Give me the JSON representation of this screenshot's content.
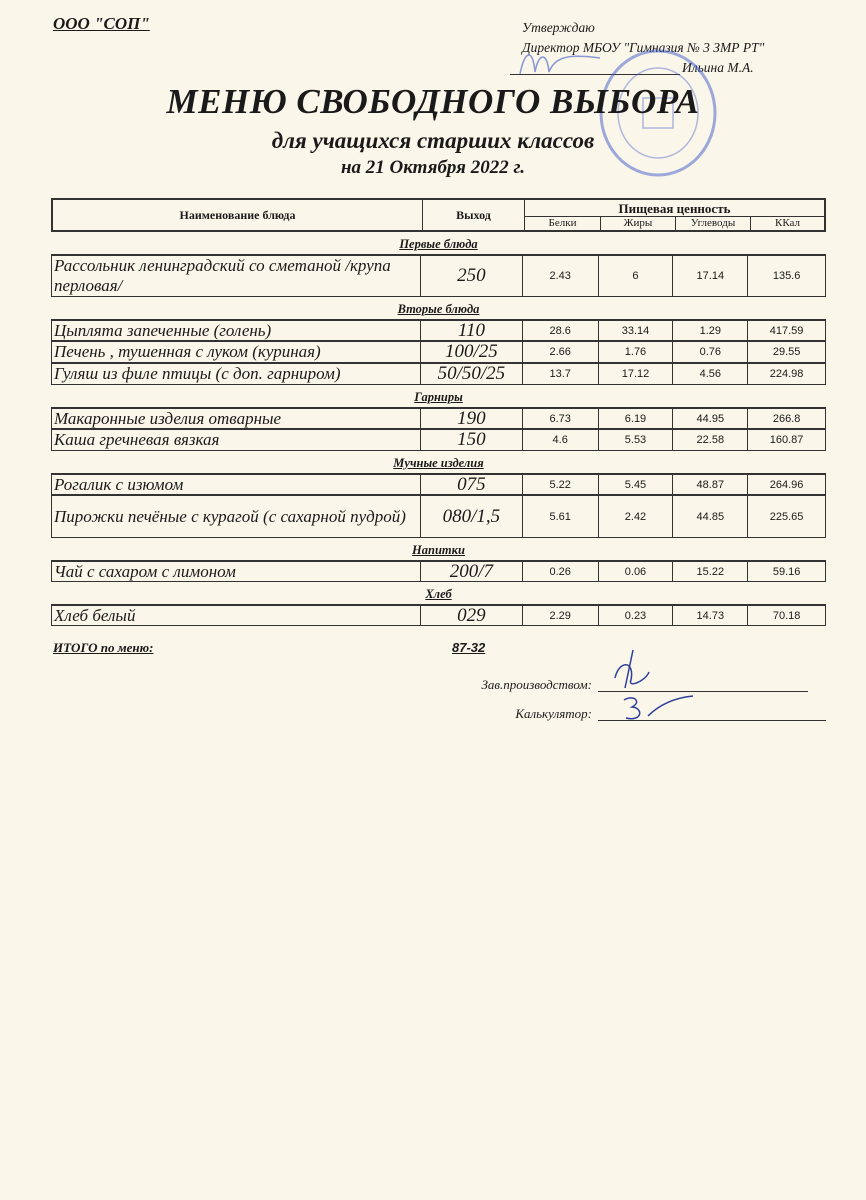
{
  "header": {
    "org": "ООО \"СОП\"",
    "approve_lines": [
      "Утверждаю",
      "Директор МБОУ \"Гимназия № 3 ЗМР РТ\"",
      "Ильина М.А."
    ],
    "title": "МЕНЮ СВОБОДНОГО ВЫБОРА",
    "subtitle": "для учащихся старших классов",
    "date": "на 21 Октября 2022 г."
  },
  "table": {
    "col_name": "Наименование блюда",
    "col_output": "Выход",
    "col_nutrition": "Пищевая ценность",
    "col_protein": "Белки",
    "col_fat": "Жиры",
    "col_carbs": "Углеводы",
    "col_kcal": "ККал",
    "sections": [
      {
        "title": "Первые блюда",
        "rows": [
          {
            "name": "Рассольник ленинградский со сметаной /крупа перловая/",
            "output": "250",
            "protein": "2.43",
            "fat": "6",
            "carbs": "17.14",
            "kcal": "135.6",
            "tall": true
          }
        ]
      },
      {
        "title": "Вторые блюда",
        "rows": [
          {
            "name": "Цыплята запеченные (голень)",
            "output": "110",
            "protein": "28.6",
            "fat": "33.14",
            "carbs": "1.29",
            "kcal": "417.59"
          },
          {
            "name": "Печень , тушенная  с луком (куриная)",
            "output": "100/25",
            "protein": "2.66",
            "fat": "1.76",
            "carbs": "0.76",
            "kcal": "29.55"
          },
          {
            "name": "Гуляш из филе птицы (с доп. гарниром)",
            "output": "50/50/25",
            "protein": "13.7",
            "fat": "17.12",
            "carbs": "4.56",
            "kcal": "224.98"
          }
        ]
      },
      {
        "title": "Гарниры",
        "rows": [
          {
            "name": "Макаронные изделия отварные",
            "output": "190",
            "protein": "6.73",
            "fat": "6.19",
            "carbs": "44.95",
            "kcal": "266.8"
          },
          {
            "name": "Каша гречневая вязкая",
            "output": "150",
            "protein": "4.6",
            "fat": "5.53",
            "carbs": "22.58",
            "kcal": "160.87"
          }
        ]
      },
      {
        "title": "Мучные изделия",
        "rows": [
          {
            "name": "Рогалик с изюмом",
            "output": "075",
            "protein": "5.22",
            "fat": "5.45",
            "carbs": "48.87",
            "kcal": "264.96"
          },
          {
            "name": "Пирожки печёные с курагой (с сахарной пудрой)",
            "output": "080/1,5",
            "protein": "5.61",
            "fat": "2.42",
            "carbs": "44.85",
            "kcal": "225.65",
            "tall": true
          }
        ]
      },
      {
        "title": "Напитки",
        "rows": [
          {
            "name": "Чай с сахаром с лимоном",
            "output": "200/7",
            "protein": "0.26",
            "fat": "0.06",
            "carbs": "15.22",
            "kcal": "59.16"
          }
        ]
      },
      {
        "title": "Хлеб",
        "rows": [
          {
            "name": "Хлеб белый",
            "output": "029",
            "protein": "2.29",
            "fat": "0.23",
            "carbs": "14.73",
            "kcal": "70.18"
          }
        ]
      }
    ]
  },
  "footer": {
    "total_label": "ИТОГО по меню:",
    "total_value": "87-32",
    "production_label": "Зав.производством:",
    "calculator_label": "Калькулятор:"
  },
  "colors": {
    "paper": "#fbf6ea",
    "stamp": "#3c5ac8"
  }
}
